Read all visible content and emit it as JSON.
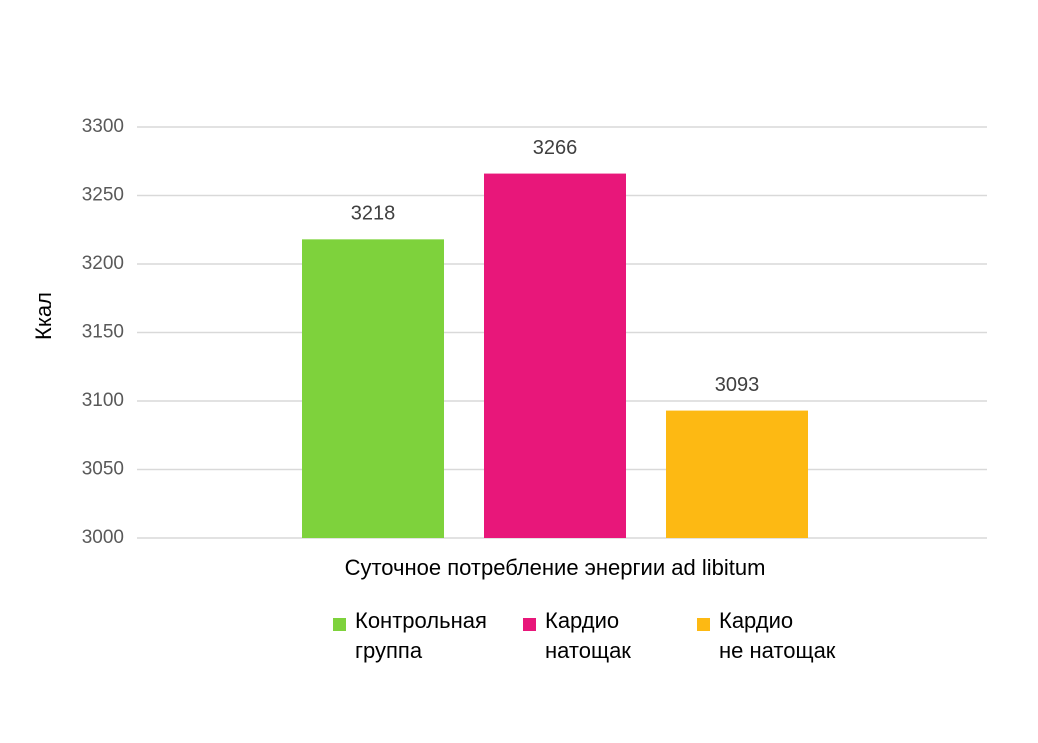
{
  "chart_data": {
    "type": "bar",
    "y_label": "Ккал",
    "categories": [
      "Суточное потребление энергии ad libitum"
    ],
    "series": [
      {
        "name": "Контрольная\nгруппа",
        "color": "#7ed23c",
        "values": [
          3218
        ]
      },
      {
        "name": "Кардио\nнатощак",
        "color": "#e8177a",
        "values": [
          3266
        ]
      },
      {
        "name": "Кардио\nне натощак",
        "color": "#fdb913",
        "values": [
          3093
        ]
      }
    ],
    "ylim": [
      3000,
      3300
    ],
    "yticks": [
      3000,
      3050,
      3100,
      3150,
      3200,
      3250,
      3300
    ],
    "grid": true,
    "legend": "bottom"
  }
}
